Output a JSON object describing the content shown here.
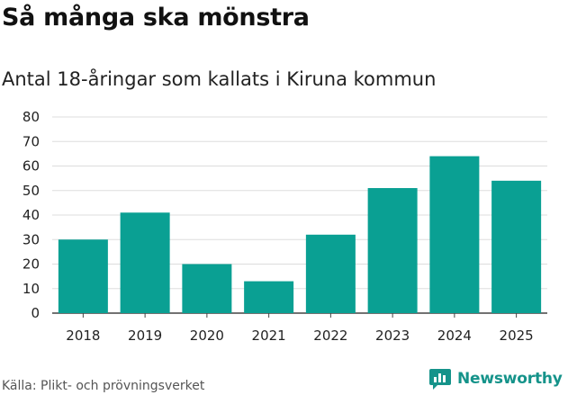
{
  "title": "Så många ska mönstra",
  "subtitle": "Antal 18-åringar som kallats i Kiruna kommun",
  "source": "Källa: Plikt- och prövningsverket",
  "brand": {
    "name": "Newsworthy",
    "icon": "newsworthy-logo-icon"
  },
  "colors": {
    "bar": "#0aa093",
    "grid": "#dddddd",
    "brand": "#15938a"
  },
  "chart_data": {
    "type": "bar",
    "categories": [
      "2018",
      "2019",
      "2020",
      "2021",
      "2022",
      "2023",
      "2024",
      "2025"
    ],
    "values": [
      30,
      41,
      20,
      13,
      32,
      51,
      64,
      54
    ],
    "title": "Så många ska mönstra",
    "subtitle": "Antal 18-åringar som kallats i Kiruna kommun",
    "xlabel": "",
    "ylabel": "",
    "ylim": [
      0,
      80
    ],
    "yticks": [
      0,
      10,
      20,
      30,
      40,
      50,
      60,
      70,
      80
    ],
    "grid": true,
    "legend": "none"
  }
}
